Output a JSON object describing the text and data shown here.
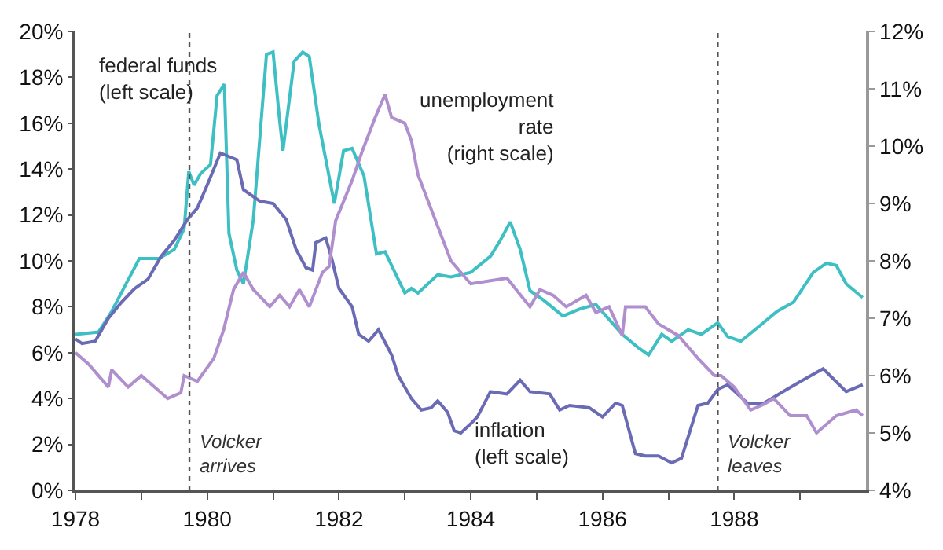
{
  "chart_data": {
    "type": "line",
    "xlim": [
      1978,
      1990
    ],
    "xticks": [
      1978,
      {
        "value": 1979,
        "label": null
      },
      1980,
      {
        "value": 1981,
        "label": null
      },
      1982,
      {
        "value": 1983,
        "label": null
      },
      1984,
      {
        "value": 1985,
        "label": null
      },
      1986,
      {
        "value": 1987,
        "label": null
      },
      1988,
      {
        "value": 1989,
        "label": null
      }
    ],
    "ylim": [
      0,
      20
    ],
    "yticks": [
      {
        "value": 0,
        "label": "0%"
      },
      {
        "value": 2,
        "label": "2%"
      },
      {
        "value": 4,
        "label": "4%"
      },
      {
        "value": 6,
        "label": "6%"
      },
      {
        "value": 8,
        "label": "8%"
      },
      {
        "value": 10,
        "label": "10%"
      },
      {
        "value": 12,
        "label": "12%"
      },
      {
        "value": 14,
        "label": "14%"
      },
      {
        "value": 16,
        "label": "16%"
      },
      {
        "value": 18,
        "label": "18%"
      },
      {
        "value": 20,
        "label": "20%"
      }
    ],
    "y2lim": [
      4,
      12
    ],
    "y2ticks": [
      {
        "value": 4,
        "label": "4%"
      },
      {
        "value": 5,
        "label": "5%"
      },
      {
        "value": 6,
        "label": "6%"
      },
      {
        "value": 7,
        "label": "7%"
      },
      {
        "value": 8,
        "label": "8%"
      },
      {
        "value": 9,
        "label": "9%"
      },
      {
        "value": 10,
        "label": "10%"
      },
      {
        "value": 11,
        "label": "11%"
      },
      {
        "value": 12,
        "label": "12%"
      }
    ],
    "legend": false,
    "marker": "none",
    "line_style": "solid",
    "series": [
      {
        "name": "federal funds\n(left scale)",
        "color": "#3dbfc4",
        "x": [
          1978.0,
          1978.35,
          1978.55,
          1978.75,
          1978.97,
          1979.27,
          1979.5,
          1979.65,
          1979.72,
          1979.8,
          1979.9,
          1980.05,
          1980.15,
          1980.26,
          1980.33,
          1980.45,
          1980.55,
          1980.7,
          1980.9,
          1981.0,
          1981.1,
          1981.15,
          1981.32,
          1981.45,
          1981.55,
          1981.7,
          1981.93,
          1982.07,
          1982.2,
          1982.38,
          1982.57,
          1982.7,
          1983.0,
          1983.1,
          1983.2,
          1983.5,
          1983.7,
          1984.0,
          1984.3,
          1984.45,
          1984.6,
          1984.75,
          1984.9,
          1985.1,
          1985.4,
          1985.65,
          1985.9,
          1986.3,
          1986.55,
          1986.7,
          1986.9,
          1987.05,
          1987.3,
          1987.5,
          1987.75,
          1987.9,
          1988.1,
          1988.4,
          1988.65,
          1988.9,
          1989.2,
          1989.4,
          1989.55,
          1989.7,
          1989.95
        ],
        "values": [
          6.8,
          6.9,
          7.8,
          8.9,
          10.1,
          10.1,
          10.5,
          11.4,
          13.9,
          13.3,
          13.8,
          14.2,
          17.2,
          17.7,
          11.2,
          9.6,
          9.0,
          11.8,
          19.0,
          19.1,
          16.1,
          14.8,
          18.7,
          19.1,
          18.9,
          15.9,
          12.5,
          14.8,
          14.9,
          13.7,
          10.3,
          10.4,
          8.6,
          8.8,
          8.6,
          9.4,
          9.3,
          9.5,
          10.2,
          10.9,
          11.7,
          10.5,
          8.7,
          8.3,
          7.6,
          7.9,
          8.1,
          6.8,
          6.2,
          5.9,
          6.8,
          6.5,
          7.0,
          6.8,
          7.3,
          6.7,
          6.5,
          7.2,
          7.8,
          8.2,
          9.5,
          9.9,
          9.8,
          9.0,
          8.4
        ]
      },
      {
        "name": "inflation\n(left scale)",
        "color": "#6b6bb5",
        "x": [
          1978.0,
          1978.1,
          1978.3,
          1978.5,
          1978.7,
          1978.9,
          1979.1,
          1979.3,
          1979.5,
          1979.7,
          1979.85,
          1980.0,
          1980.2,
          1980.45,
          1980.55,
          1980.8,
          1981.0,
          1981.2,
          1981.35,
          1981.5,
          1981.6,
          1981.65,
          1981.8,
          1981.9,
          1982.0,
          1982.2,
          1982.3,
          1982.45,
          1982.6,
          1982.8,
          1982.9,
          1983.1,
          1983.25,
          1983.4,
          1983.5,
          1983.65,
          1983.75,
          1983.85,
          1984.0,
          1984.1,
          1984.3,
          1984.55,
          1984.75,
          1984.9,
          1985.2,
          1985.35,
          1985.5,
          1985.8,
          1986.0,
          1986.2,
          1986.3,
          1986.5,
          1986.65,
          1986.85,
          1987.05,
          1987.2,
          1987.45,
          1987.6,
          1987.75,
          1987.9,
          1988.2,
          1988.45,
          1988.8,
          1989.1,
          1989.35,
          1989.7,
          1989.95
        ],
        "values": [
          6.6,
          6.4,
          6.5,
          7.5,
          8.2,
          8.8,
          9.2,
          10.2,
          10.9,
          11.8,
          12.3,
          13.3,
          14.7,
          14.4,
          13.1,
          12.6,
          12.5,
          11.8,
          10.5,
          9.7,
          9.6,
          10.8,
          11.0,
          10.0,
          8.8,
          8.0,
          6.8,
          6.5,
          7.0,
          5.9,
          5.0,
          4.0,
          3.5,
          3.6,
          3.9,
          3.4,
          2.6,
          2.5,
          2.9,
          3.2,
          4.3,
          4.2,
          4.8,
          4.3,
          4.2,
          3.5,
          3.7,
          3.6,
          3.2,
          3.8,
          3.7,
          1.6,
          1.5,
          1.5,
          1.2,
          1.4,
          3.7,
          3.8,
          4.4,
          4.6,
          3.8,
          3.8,
          4.4,
          4.9,
          5.3,
          4.3,
          4.6
        ]
      },
      {
        "name": "unemployment\nrate\n(right scale)",
        "color": "#b08fcf",
        "axis": "y2",
        "x": [
          1978.0,
          1978.2,
          1978.5,
          1978.55,
          1978.8,
          1979.0,
          1979.2,
          1979.4,
          1979.6,
          1979.65,
          1979.85,
          1980.1,
          1980.25,
          1980.4,
          1980.55,
          1980.7,
          1980.95,
          1981.1,
          1981.25,
          1981.4,
          1981.55,
          1981.75,
          1981.85,
          1981.95,
          1982.2,
          1982.35,
          1982.55,
          1982.7,
          1982.8,
          1983.0,
          1983.1,
          1983.2,
          1983.4,
          1983.7,
          1984.0,
          1984.55,
          1984.9,
          1985.05,
          1985.25,
          1985.45,
          1985.75,
          1985.9,
          1986.1,
          1986.3,
          1986.35,
          1986.65,
          1986.85,
          1987.15,
          1987.45,
          1987.7,
          1987.8,
          1988.0,
          1988.25,
          1988.45,
          1988.6,
          1988.85,
          1989.1,
          1989.25,
          1989.55,
          1989.85,
          1989.95
        ],
        "values": [
          6.4,
          6.2,
          5.8,
          6.1,
          5.8,
          6.0,
          5.8,
          5.6,
          5.7,
          6.0,
          5.9,
          6.3,
          6.8,
          7.5,
          7.8,
          7.5,
          7.2,
          7.4,
          7.2,
          7.5,
          7.2,
          7.8,
          7.9,
          8.7,
          9.4,
          9.9,
          10.5,
          10.9,
          10.5,
          10.4,
          10.1,
          9.5,
          8.9,
          8.0,
          7.6,
          7.7,
          7.2,
          7.5,
          7.4,
          7.2,
          7.4,
          7.1,
          7.2,
          6.7,
          7.2,
          7.2,
          6.9,
          6.7,
          6.3,
          6.0,
          6.0,
          5.8,
          5.4,
          5.5,
          5.6,
          5.3,
          5.3,
          5.0,
          5.3,
          5.4,
          5.3
        ]
      }
    ],
    "ref_lines": [
      {
        "axis": "x",
        "value": 1979.73,
        "label": "Volcker\narrives",
        "line_style": "dotted",
        "color": "#555555"
      },
      {
        "axis": "x",
        "value": 1987.75,
        "label": "Volcker\nleaves",
        "line_style": "dotted",
        "color": "#555555"
      }
    ]
  }
}
